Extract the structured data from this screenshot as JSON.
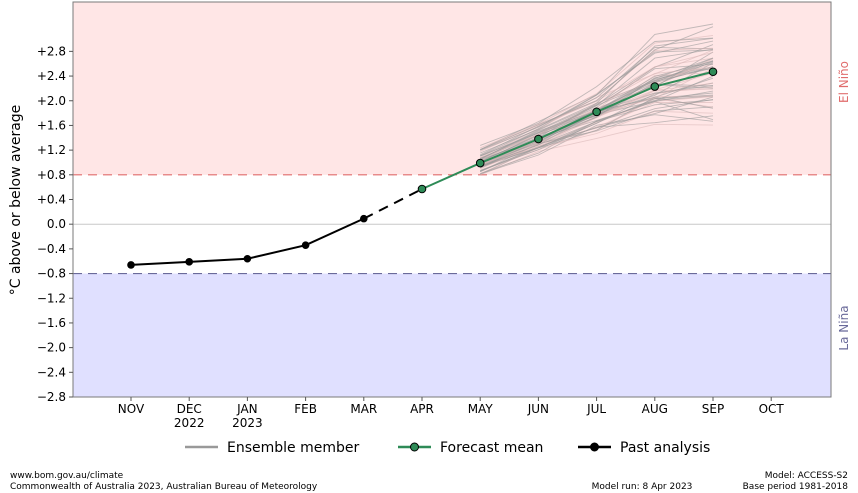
{
  "chart_data": {
    "type": "line",
    "ylabel": "°C above or below average",
    "ylim": [
      -2.8,
      3.6
    ],
    "yticks": [
      -2.8,
      -2.4,
      -2.0,
      -1.6,
      -1.2,
      -0.8,
      -0.4,
      0.0,
      0.4,
      0.8,
      1.2,
      1.6,
      2.0,
      2.4,
      2.8
    ],
    "ytick_labels": [
      "−2.8",
      "−2.4",
      "−2.0",
      "−1.6",
      "−1.2",
      "−0.8",
      "−0.4",
      "0.0",
      "+0.4",
      "+0.8",
      "+1.2",
      "+1.6",
      "+2.0",
      "+2.4",
      "+2.8"
    ],
    "categories": [
      "NOV",
      "DEC",
      "JAN",
      "FEB",
      "MAR",
      "APR",
      "MAY",
      "JUN",
      "JUL",
      "AUG",
      "SEP",
      "OCT"
    ],
    "category_sublabels": [
      "",
      "2022",
      "2023",
      "",
      "",
      "",
      "",
      "",
      "",
      "",
      "",
      ""
    ],
    "thresholds": {
      "el_nino": 0.8,
      "la_nina": -0.8,
      "el_nino_label": "El Niño",
      "la_nina_label": "La Niña",
      "el_nino_fill": "#ffe6e6",
      "la_nina_fill": "#e0e0ff",
      "el_nino_line": "#e06c6c",
      "la_nina_line": "#6a6a9a"
    },
    "series": [
      {
        "name": "Past analysis",
        "color": "#000000",
        "x": [
          "NOV",
          "DEC",
          "JAN",
          "FEB",
          "MAR"
        ],
        "values": [
          -0.66,
          -0.61,
          -0.56,
          -0.34,
          0.09
        ]
      },
      {
        "name": "Forecast mean",
        "color": "#2e8b57",
        "x": [
          "APR",
          "MAY",
          "JUN",
          "JUL",
          "AUG",
          "SEP"
        ],
        "values": [
          0.57,
          0.99,
          1.38,
          1.82,
          2.23,
          2.47
        ]
      },
      {
        "name": "Ensemble member",
        "color": "#999999",
        "x": [
          "MAY",
          "JUN",
          "JUL",
          "AUG",
          "SEP"
        ],
        "spread": {
          "low": [
            0.78,
            1.15,
            1.45,
            1.65,
            1.55
          ],
          "high": [
            1.25,
            1.65,
            2.15,
            3.0,
            3.2
          ]
        }
      }
    ],
    "bridge": {
      "from": "MAR",
      "to": "APR",
      "style": "dashed"
    },
    "legend": {
      "position": "bottom",
      "entries": [
        "Ensemble member",
        "Forecast mean",
        "Past analysis"
      ]
    },
    "grid": false
  },
  "footer": {
    "left_line1": "www.bom.gov.au/climate",
    "left_line2": "Commonwealth of Australia 2023, Australian Bureau of Meteorology",
    "center": "Model run: 8 Apr 2023",
    "right_line1": "Model: ACCESS-S2",
    "right_line2": "Base period 1981-2018"
  }
}
